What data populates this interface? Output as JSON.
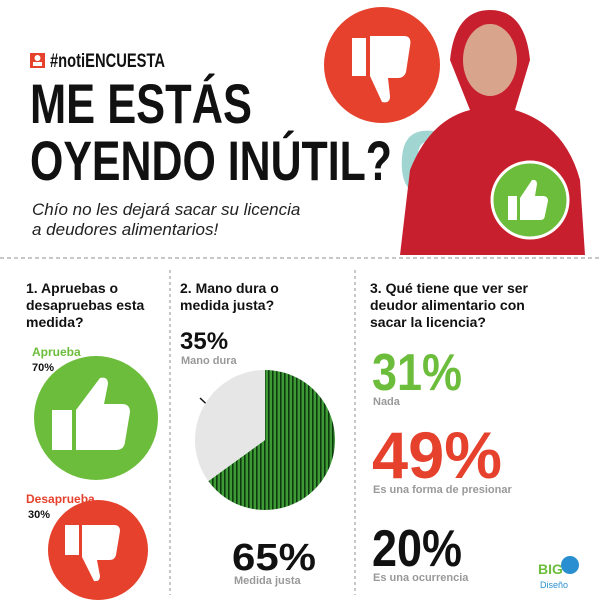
{
  "header": {
    "tag": "#notiENCUESTA",
    "title_lines": [
      "ME ESTÁS",
      "OYENDO INÚTIL?"
    ],
    "subtitle_lines": [
      "Chío no les dejará sacar su licencia",
      "a deudores alimentarios!"
    ]
  },
  "question1": {
    "title_lines": [
      "1. Apruebas o",
      "desapruebas esta",
      "medida?"
    ],
    "options": [
      {
        "label": "Aprueba",
        "percent": "70%"
      },
      {
        "label": "Desaprueba",
        "percent": "30%"
      }
    ]
  },
  "question2": {
    "title_lines": [
      "2. Mano dura o",
      "medida justa?"
    ],
    "options": [
      {
        "label": "Mano dura",
        "value": 35,
        "percent": "35%",
        "color": "#e6e6e6"
      },
      {
        "label": "Medida justa",
        "value": 65,
        "percent": "65%",
        "color": "#2e8b2e"
      }
    ]
  },
  "question3": {
    "title_lines": [
      "3. Qué tiene que ver ser",
      "deudor alimentario con",
      "sacar la licencia?"
    ],
    "options": [
      {
        "label": "Nada",
        "percent": "31%",
        "color": "#6cbd3c"
      },
      {
        "label": "Es una forma de presionar",
        "percent": "49%",
        "color": "#e5412d"
      },
      {
        "label": "Es una ocurrencia",
        "percent": "20%",
        "color": "#111111"
      }
    ]
  },
  "logo": {
    "name": "BIG",
    "sub": "Diseño"
  }
}
